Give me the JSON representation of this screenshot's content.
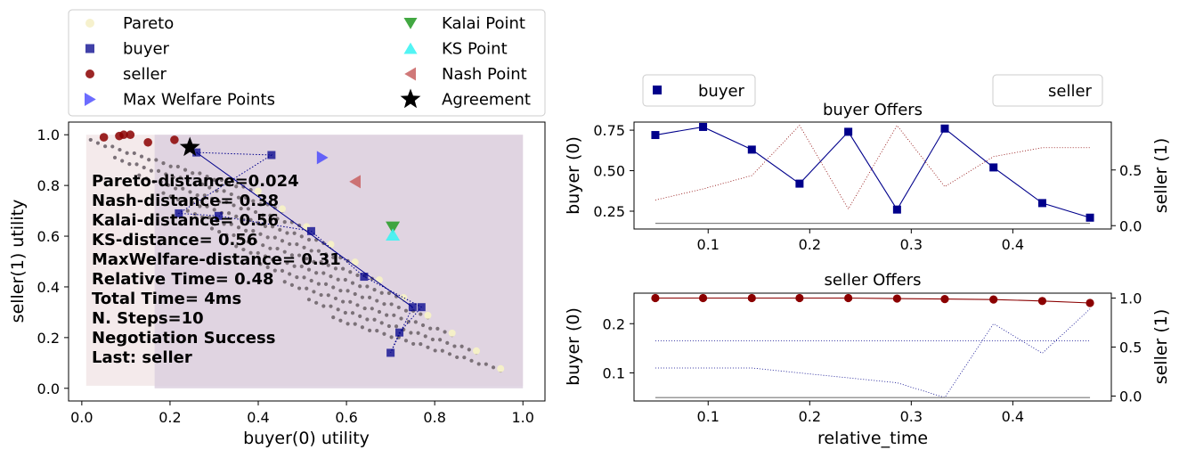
{
  "chart_data": [
    {
      "type": "scatter",
      "xlabel": "buyer(0) utility",
      "ylabel": "seller(1) utility",
      "xlim": [
        -0.03,
        1.05
      ],
      "ylim": [
        -0.05,
        1.05
      ],
      "xticks": [
        "0.0",
        "0.2",
        "0.4",
        "0.6",
        "0.8",
        "1.0"
      ],
      "yticks": [
        "0.0",
        "0.2",
        "0.4",
        "0.6",
        "0.8",
        "1.0"
      ],
      "legend": {
        "position": "top",
        "entries": [
          "Pareto",
          "buyer",
          "seller",
          "Max Welfare Points",
          "Kalai Point",
          "KS Point",
          "Nash Point",
          "Agreement"
        ]
      },
      "colors": {
        "pareto": "#f5f0c8",
        "buyer": "#00008b",
        "seller": "#8b0000",
        "max_welfare": "#3b3bff",
        "kalai": "#2e9e2e",
        "ks": "#3ff3f3",
        "nash": "#c86060",
        "agreement": "#000000",
        "outcomes": "#7b7178",
        "buyer_region": "#f2e6e8",
        "seller_region": "#dcd0df"
      },
      "regions": [
        {
          "name": "buyer",
          "x": [
            0.01,
            1.0
          ],
          "y": [
            0.01,
            1.0
          ]
        },
        {
          "name": "seller",
          "x": [
            0.165,
            1.0
          ],
          "y": [
            0.0,
            1.0
          ]
        }
      ],
      "stats_text": [
        "Pareto-distance=0.024",
        "Nash-distance= 0.38",
        "Kalai-distance= 0.56",
        "KS-distance= 0.56",
        "MaxWelfare-distance= 0.31",
        "Relative Time= 0.48",
        "Total Time= 4ms",
        "N. Steps=10",
        "Negotiation Success",
        "Last: seller"
      ],
      "series": [
        {
          "name": "buyer",
          "x": [
            0.26,
            0.43,
            0.22,
            0.31,
            0.52,
            0.64,
            0.77,
            0.72,
            0.7,
            0.75
          ],
          "y": [
            0.93,
            0.92,
            0.69,
            0.68,
            0.62,
            0.44,
            0.32,
            0.22,
            0.14,
            0.32
          ]
        },
        {
          "name": "seller",
          "x": [
            0.05,
            0.085,
            0.095,
            0.11,
            0.15,
            0.21
          ],
          "y": [
            0.99,
            0.995,
            1.0,
            1.0,
            0.97,
            0.98
          ]
        }
      ],
      "points": {
        "max_welfare": [
          0.545,
          0.91
        ],
        "kalai": [
          0.705,
          0.635
        ],
        "ks": [
          0.705,
          0.605
        ],
        "nash": [
          0.62,
          0.815
        ],
        "agreement": [
          0.245,
          0.95
        ]
      }
    },
    {
      "type": "line",
      "title": "buyer Offers",
      "xlabel": "",
      "ylabel": "buyer (0)",
      "ylabel_right": "seller (1)",
      "legend": [
        "buyer",
        "seller"
      ],
      "xlim": [
        0.027,
        0.497
      ],
      "ylim": [
        0.14,
        0.8
      ],
      "ylim_right": [
        -0.03,
        0.93
      ],
      "xticks": [
        "0.1",
        "0.2",
        "0.3",
        "0.4"
      ],
      "yticks": [
        "0.25",
        "0.50",
        "0.75"
      ],
      "yticks_right": [
        "0.0",
        "0.5"
      ],
      "x": [
        0.048,
        0.095,
        0.143,
        0.19,
        0.238,
        0.286,
        0.333,
        0.381,
        0.429,
        0.476
      ],
      "series": [
        {
          "name": "buyer",
          "axis": "left",
          "values": [
            0.72,
            0.77,
            0.63,
            0.42,
            0.74,
            0.26,
            0.76,
            0.52,
            0.3,
            0.21
          ]
        },
        {
          "name": "seller",
          "axis": "right",
          "values": [
            0.23,
            0.33,
            0.45,
            0.9,
            0.15,
            0.9,
            0.35,
            0.62,
            0.7,
            0.7
          ]
        },
        {
          "axis": "right",
          "values": [
            0.02,
            0.02,
            0.02,
            0.02,
            0.02,
            0.02,
            0.02,
            0.02,
            0.02,
            0.02
          ]
        }
      ]
    },
    {
      "type": "line",
      "title": "seller Offers",
      "xlabel": "relative_time",
      "ylabel": "buyer (0)",
      "ylabel_right": "seller (1)",
      "xlim": [
        0.027,
        0.497
      ],
      "ylim": [
        0.043,
        0.262
      ],
      "ylim_right": [
        -0.05,
        1.05
      ],
      "xticks": [
        "0.1",
        "0.2",
        "0.3",
        "0.4"
      ],
      "yticks": [
        "0.1",
        "0.2"
      ],
      "yticks_right": [
        "0.0",
        "0.5",
        "1.0"
      ],
      "x": [
        0.048,
        0.095,
        0.143,
        0.19,
        0.238,
        0.286,
        0.333,
        0.381,
        0.429,
        0.476
      ],
      "series": [
        {
          "name": "seller",
          "axis": "right",
          "values": [
            1.0,
            1.0,
            1.0,
            1.0,
            1.0,
            0.995,
            0.99,
            0.985,
            0.97,
            0.95
          ]
        },
        {
          "axis": "left",
          "values": [
            0.165,
            0.165,
            0.165,
            0.165,
            0.165,
            0.165,
            0.165,
            0.165,
            0.165,
            0.165
          ]
        },
        {
          "axis": "left",
          "values": [
            0.11,
            0.11,
            0.11,
            0.1,
            0.09,
            0.08,
            0.05,
            0.2,
            0.14,
            0.23
          ]
        },
        {
          "axis": "left",
          "values": [
            0.05,
            0.05,
            0.05,
            0.05,
            0.05,
            0.05,
            0.05,
            0.05,
            0.05,
            0.05
          ]
        }
      ]
    }
  ]
}
